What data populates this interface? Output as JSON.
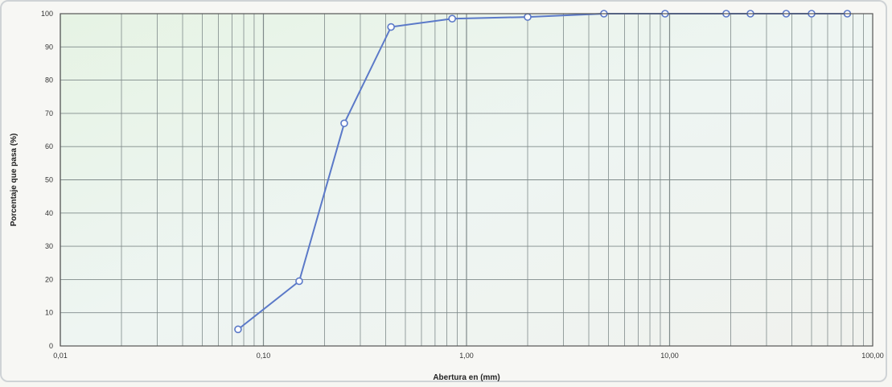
{
  "chart_data": {
    "type": "line",
    "title": "",
    "xlabel": "Abertura en (mm)",
    "ylabel": "Porcentaje que pasa (%)",
    "x_scale": "log",
    "xlim": [
      0.01,
      100
    ],
    "ylim": [
      0,
      100
    ],
    "x_tick_labels": [
      "0,01",
      "0,10",
      "1,00",
      "10,00",
      "100,00"
    ],
    "x_tick_values": [
      0.01,
      0.1,
      1,
      10,
      100
    ],
    "y_tick_values": [
      0,
      10,
      20,
      30,
      40,
      50,
      60,
      70,
      80,
      90,
      100
    ],
    "grid": true,
    "colors": {
      "line": "#5b79c8",
      "grid": "#7f8a8a",
      "plot_bg": "#eaf4ea",
      "marker_fill": "#ffffff"
    },
    "series": [
      {
        "x": [
          0.075,
          0.15,
          0.25,
          0.425,
          0.85,
          2.0,
          4.75,
          9.5,
          19.0,
          25.0,
          37.5,
          50.0,
          75.0
        ],
        "y": [
          5,
          19.5,
          67,
          96,
          98.5,
          99,
          100,
          100,
          100,
          100,
          100,
          100,
          100
        ]
      }
    ]
  }
}
